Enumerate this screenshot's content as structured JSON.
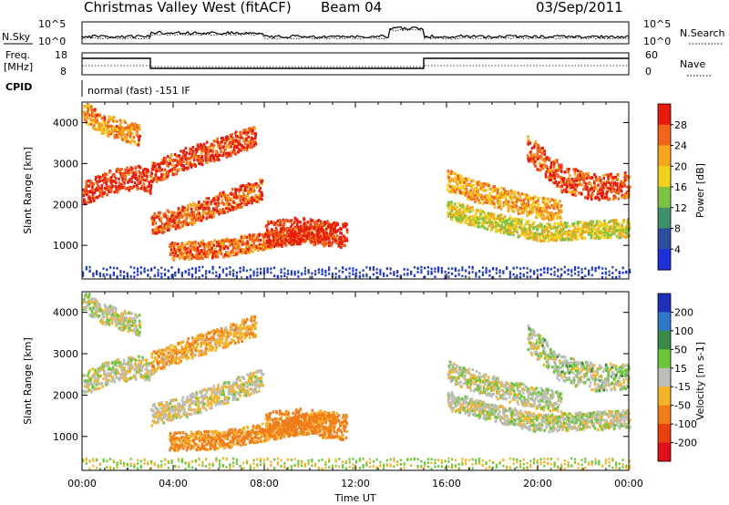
{
  "header": {
    "station": "Christmas Valley West (fitACF)",
    "beam": "Beam 04",
    "date": "03/Sep/2011",
    "mode": "normal (fast) -151 IF"
  },
  "side_labels": {
    "nsky": "N.Sky",
    "nsearch": "N.Search",
    "freq_line1": "Freq.",
    "freq_line2": "[MHz]",
    "nave": "Nave",
    "cpid": "CPID"
  },
  "noise_axis": {
    "left_ticks": [
      "10^5",
      "10^0"
    ],
    "right_ticks": [
      "10^5",
      "10^0"
    ]
  },
  "freq_axis": {
    "left_ticks": [
      "18",
      "8"
    ],
    "right_ticks": [
      "60",
      "0"
    ]
  },
  "chart_data": [
    {
      "type": "heatmap",
      "panel": "power",
      "ylabel": "Slant Range [km]",
      "colorbar_label": "Power [dB]",
      "colorbar_ticks": [
        "28",
        "24",
        "20",
        "16",
        "12",
        "8",
        "4"
      ],
      "colorbar_colors": [
        "#e51c0c",
        "#f0641c",
        "#f5a51e",
        "#f2d21c",
        "#7ec243",
        "#3f8f6a",
        "#2d4e9e",
        "#1f2fd8"
      ],
      "ylim": [
        180,
        4500
      ],
      "yticks": [
        "4000",
        "3000",
        "2000",
        "1000"
      ],
      "xticks": [
        "00:00",
        "04:00",
        "08:00",
        "12:00",
        "16:00",
        "20:00",
        "00:00"
      ],
      "bands": [
        {
          "t": [
            0.0,
            1.2,
            2.5,
            3.0
          ],
          "r": [
            2300,
            2600,
            2700,
            2550
          ],
          "w": 280,
          "level": 0.92
        },
        {
          "t": [
            3.0,
            4.5,
            6.0,
            7.5
          ],
          "r": [
            2800,
            3150,
            3400,
            3700
          ],
          "w": 260,
          "level": 0.88
        },
        {
          "t": [
            3.0,
            4.5,
            6.0,
            7.8
          ],
          "r": [
            1550,
            1750,
            2050,
            2400
          ],
          "w": 260,
          "level": 0.82
        },
        {
          "t": [
            3.8,
            6.0,
            8.5,
            11.0
          ],
          "r": [
            900,
            950,
            1200,
            1400
          ],
          "w": 220,
          "level": 0.8
        },
        {
          "t": [
            8.0,
            9.5,
            11.5
          ],
          "r": [
            1300,
            1400,
            1250
          ],
          "w": 320,
          "level": 0.94
        },
        {
          "t": [
            16.0,
            17.5,
            19.5,
            21.0
          ],
          "r": [
            2600,
            2300,
            2000,
            1850
          ],
          "w": 260,
          "level": 0.68
        },
        {
          "t": [
            16.0,
            18.0,
            20.0,
            24.0
          ],
          "r": [
            1900,
            1600,
            1350,
            1450
          ],
          "w": 220,
          "level": 0.55
        },
        {
          "t": [
            19.5,
            21.0,
            22.5,
            24.0
          ],
          "r": [
            3400,
            2650,
            2450,
            2500
          ],
          "w": 320,
          "level": 0.86
        },
        {
          "t": [
            0.0,
            0.8,
            2.5
          ],
          "r": [
            4300,
            4000,
            3700
          ],
          "w": 250,
          "level": 0.72
        }
      ]
    },
    {
      "type": "heatmap",
      "panel": "velocity",
      "ylabel": "Slant Range [km]",
      "colorbar_label": "Velocity [m s-1]",
      "colorbar_ticks": [
        "200",
        "100",
        "50",
        "15",
        "-15",
        "-50",
        "-100",
        "-200"
      ],
      "colorbar_colors": [
        "#1e2fb8",
        "#2f7ac6",
        "#3a8a4a",
        "#6cc63a",
        "#bdbdb8",
        "#f5b32a",
        "#f07d1c",
        "#e8400e",
        "#e0101a"
      ],
      "ylim": [
        180,
        4500
      ],
      "yticks": [
        "4000",
        "3000",
        "2000",
        "1000"
      ],
      "xticks": [
        "00:00",
        "04:00",
        "08:00",
        "12:00",
        "16:00",
        "20:00",
        "00:00"
      ],
      "xlabel": "Time UT",
      "bands": [
        {
          "t": [
            0.0,
            1.2,
            2.5,
            3.0
          ],
          "r": [
            2300,
            2600,
            2700,
            2550
          ],
          "w": 280,
          "velocity": 0
        },
        {
          "t": [
            3.0,
            4.5,
            6.0,
            7.5
          ],
          "r": [
            2800,
            3150,
            3400,
            3700
          ],
          "w": 260,
          "velocity": -40
        },
        {
          "t": [
            3.0,
            4.5,
            6.0,
            7.8
          ],
          "r": [
            1550,
            1750,
            2050,
            2400
          ],
          "w": 260,
          "velocity": -10
        },
        {
          "t": [
            3.8,
            6.0,
            8.5,
            11.0
          ],
          "r": [
            900,
            950,
            1200,
            1400
          ],
          "w": 220,
          "velocity": -60
        },
        {
          "t": [
            8.0,
            9.5,
            11.5
          ],
          "r": [
            1300,
            1400,
            1250
          ],
          "w": 320,
          "velocity": -70
        },
        {
          "t": [
            16.0,
            17.5,
            19.5,
            21.0
          ],
          "r": [
            2600,
            2300,
            2000,
            1850
          ],
          "w": 260,
          "velocity": 0
        },
        {
          "t": [
            16.0,
            18.0,
            20.0,
            24.0
          ],
          "r": [
            1900,
            1600,
            1350,
            1450
          ],
          "w": 220,
          "velocity": 0
        },
        {
          "t": [
            19.5,
            21.0,
            22.5,
            24.0
          ],
          "r": [
            3400,
            2650,
            2450,
            2500
          ],
          "w": 320,
          "velocity": 5
        },
        {
          "t": [
            0.0,
            0.8,
            2.5
          ],
          "r": [
            4300,
            4000,
            3700
          ],
          "w": 250,
          "velocity": 0
        }
      ]
    }
  ]
}
